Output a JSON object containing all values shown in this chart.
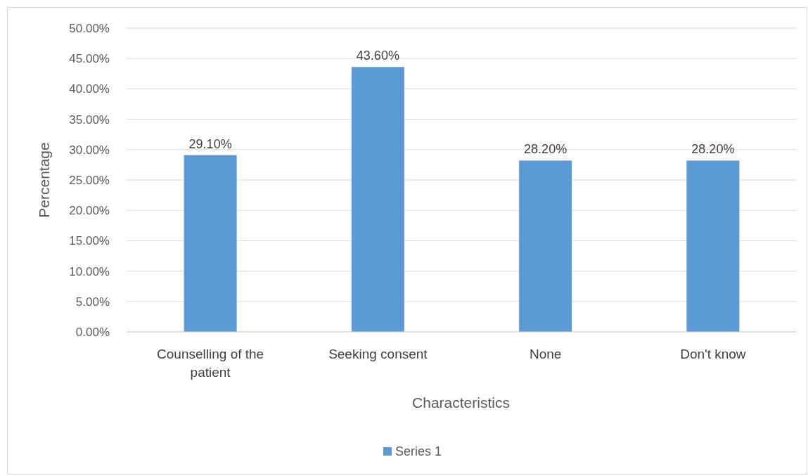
{
  "chart_data": {
    "type": "bar",
    "xlabel": "Characteristics",
    "ylabel": "Percentage",
    "categories": [
      "Counselling of the patient",
      "Seeking consent",
      "None",
      "Don't know"
    ],
    "series": [
      {
        "name": "Series 1",
        "color": "#5b9bd5",
        "values": [
          29.1,
          43.6,
          28.2,
          28.2
        ],
        "value_labels": [
          "29.10%",
          "43.60%",
          "28.20%",
          "28.20%"
        ]
      }
    ],
    "ylim": [
      0,
      50
    ],
    "yticks": [
      {
        "value": 0,
        "label": "0.00%"
      },
      {
        "value": 5,
        "label": "5.00%"
      },
      {
        "value": 10,
        "label": "10.00%"
      },
      {
        "value": 15,
        "label": "15.00%"
      },
      {
        "value": 20,
        "label": "20.00%"
      },
      {
        "value": 25,
        "label": "25.00%"
      },
      {
        "value": 30,
        "label": "30.00%"
      },
      {
        "value": 35,
        "label": "35.00%"
      },
      {
        "value": 40,
        "label": "40.00%"
      },
      {
        "value": 45,
        "label": "45.00%"
      },
      {
        "value": 50,
        "label": "50.00%"
      }
    ],
    "grid": "y",
    "legend": "bottom"
  }
}
